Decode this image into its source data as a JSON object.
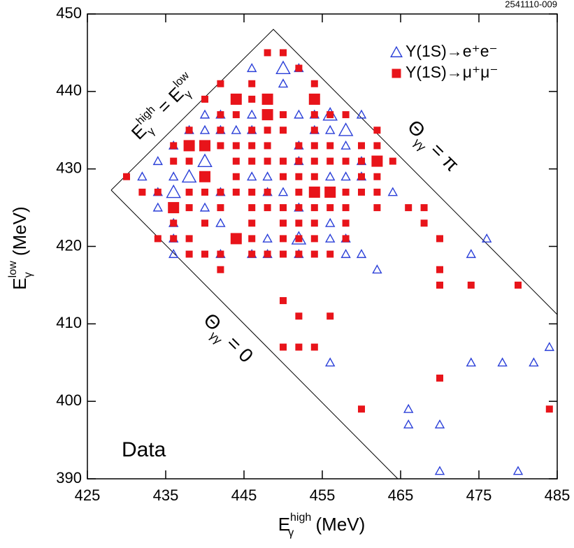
{
  "chart_data": {
    "type": "scatter",
    "figure_id": "2541110-009",
    "xlabel": {
      "main": "E",
      "sub": "γ",
      "sup": "high",
      "unit": "(MeV)"
    },
    "ylabel": {
      "main": "E",
      "sub": "γ",
      "sup": "low",
      "unit": "(MeV)"
    },
    "xlim": [
      425,
      485
    ],
    "xticks": [
      425,
      435,
      445,
      455,
      465,
      475,
      485
    ],
    "ylim": [
      390,
      450
    ],
    "yticks": [
      390,
      400,
      410,
      420,
      430,
      440,
      450
    ],
    "annotations": {
      "diagonal": {
        "left": "E",
        "left_sub": "γ",
        "left_sup": "high",
        "eq": " = E",
        "right_sub": "γ",
        "right_sup": "low"
      },
      "theta_pi": {
        "main": "Θ",
        "sub": "γγ",
        "rest": " = π"
      },
      "theta_zero": {
        "main": "Θ",
        "sub": "γγ",
        "rest": " = 0"
      },
      "data": "Data"
    },
    "series": [
      {
        "name": "Υ(1S)→e⁺e⁻",
        "color": "#2a3fd8",
        "marker": "triangle",
        "x": [
          446,
          450,
          452,
          450,
          440,
          442,
          446,
          452,
          454,
          456,
          460,
          438,
          440,
          442,
          444,
          446,
          454,
          456,
          458,
          436,
          452,
          458,
          434,
          440,
          452,
          460,
          462,
          432,
          436,
          438,
          440,
          446,
          448,
          456,
          458,
          460,
          434,
          436,
          442,
          448,
          450,
          464,
          434,
          436,
          440,
          452,
          436,
          442,
          456,
          436,
          448,
          452,
          456,
          458,
          476,
          436,
          442,
          446,
          448,
          452,
          458,
          460,
          474,
          462,
          456,
          474,
          478,
          482,
          484,
          466,
          466,
          470,
          470,
          480
        ],
        "y": [
          443,
          443,
          443,
          441,
          437,
          437,
          437,
          437,
          437,
          437,
          437,
          435,
          435,
          435,
          435,
          435,
          435,
          435,
          435,
          433,
          433,
          433,
          431,
          431,
          431,
          431,
          431,
          429,
          429,
          429,
          429,
          429,
          429,
          429,
          429,
          429,
          427,
          427,
          427,
          427,
          427,
          427,
          425,
          425,
          425,
          425,
          423,
          423,
          423,
          421,
          421,
          421,
          421,
          421,
          421,
          419,
          419,
          419,
          419,
          419,
          419,
          419,
          419,
          417,
          405,
          405,
          405,
          405,
          407,
          399,
          397,
          397,
          391,
          391
        ],
        "sizes": [
          1,
          2,
          1,
          1,
          1,
          1,
          1,
          1,
          1,
          2,
          1,
          1,
          1,
          1,
          1,
          1,
          1,
          1,
          2,
          1,
          1,
          1,
          1,
          2,
          1,
          1,
          1,
          1,
          1,
          2,
          1,
          1,
          1,
          1,
          1,
          1,
          1,
          2,
          1,
          1,
          1,
          1,
          1,
          1,
          1,
          1,
          1,
          1,
          1,
          1,
          1,
          2,
          1,
          1,
          1,
          1,
          1,
          1,
          1,
          1,
          1,
          1,
          1,
          1,
          1,
          1,
          1,
          1,
          1,
          1,
          1,
          1,
          1,
          1
        ]
      },
      {
        "name": "Υ(1S)→μ⁺μ⁻",
        "color": "#e8141a",
        "marker": "square",
        "x": [
          448,
          450,
          452,
          442,
          446,
          454,
          440,
          444,
          446,
          448,
          454,
          442,
          444,
          448,
          450,
          454,
          456,
          458,
          438,
          442,
          446,
          448,
          450,
          454,
          462,
          436,
          438,
          440,
          442,
          444,
          446,
          448,
          452,
          454,
          456,
          460,
          462,
          436,
          438,
          444,
          446,
          448,
          450,
          452,
          454,
          456,
          458,
          460,
          462,
          464,
          430,
          440,
          444,
          450,
          452,
          454,
          460,
          462,
          432,
          434,
          438,
          440,
          442,
          444,
          446,
          448,
          452,
          454,
          456,
          458,
          460,
          462,
          436,
          438,
          442,
          446,
          448,
          450,
          452,
          454,
          456,
          458,
          462,
          466,
          468,
          436,
          440,
          446,
          450,
          452,
          454,
          458,
          468,
          434,
          436,
          438,
          444,
          446,
          450,
          452,
          454,
          458,
          470,
          438,
          440,
          442,
          446,
          448,
          450,
          452,
          454,
          456,
          442,
          470,
          470,
          474,
          480,
          450,
          452,
          456,
          450,
          452,
          454,
          470,
          460,
          484
        ],
        "y": [
          445,
          445,
          443,
          441,
          441,
          441,
          439,
          439,
          439,
          439,
          439,
          437,
          437,
          437,
          437,
          437,
          437,
          437,
          435,
          435,
          435,
          435,
          435,
          435,
          435,
          433,
          433,
          433,
          433,
          433,
          433,
          433,
          433,
          433,
          433,
          433,
          433,
          431,
          431,
          431,
          431,
          431,
          431,
          431,
          431,
          431,
          431,
          431,
          431,
          431,
          429,
          429,
          429,
          429,
          429,
          429,
          429,
          429,
          427,
          427,
          427,
          427,
          427,
          427,
          427,
          427,
          427,
          427,
          427,
          427,
          427,
          427,
          425,
          425,
          425,
          425,
          425,
          425,
          425,
          425,
          425,
          425,
          425,
          425,
          425,
          423,
          423,
          423,
          423,
          423,
          423,
          423,
          423,
          421,
          421,
          421,
          421,
          421,
          421,
          421,
          421,
          421,
          421,
          419,
          419,
          419,
          419,
          419,
          419,
          419,
          419,
          419,
          417,
          417,
          415,
          415,
          415,
          413,
          411,
          411,
          407,
          407,
          407,
          403,
          399,
          399
        ],
        "sizes": [
          1,
          1,
          1,
          1,
          1,
          1,
          1,
          2,
          1,
          2,
          2,
          1,
          1,
          2,
          1,
          1,
          1,
          1,
          1,
          1,
          1,
          1,
          1,
          1,
          1,
          1,
          2,
          2,
          1,
          1,
          1,
          1,
          1,
          1,
          1,
          1,
          1,
          1,
          1,
          1,
          1,
          1,
          1,
          1,
          1,
          1,
          1,
          1,
          2,
          1,
          1,
          2,
          1,
          1,
          1,
          1,
          1,
          1,
          1,
          1,
          1,
          1,
          1,
          1,
          1,
          1,
          1,
          2,
          2,
          1,
          1,
          1,
          2,
          1,
          1,
          1,
          1,
          1,
          1,
          1,
          1,
          1,
          1,
          1,
          1,
          1,
          1,
          1,
          1,
          1,
          1,
          1,
          1,
          1,
          1,
          1,
          2,
          1,
          1,
          1,
          1,
          1,
          1,
          1,
          1,
          1,
          1,
          1,
          1,
          1,
          1,
          1,
          1,
          1,
          1,
          1,
          1,
          1,
          1,
          1,
          1,
          1,
          1,
          1,
          1,
          1
        ]
      }
    ]
  }
}
